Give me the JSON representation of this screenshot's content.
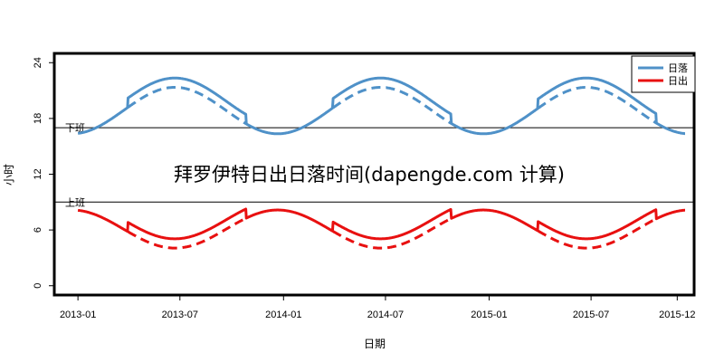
{
  "chart_data": {
    "type": "line",
    "title": "拜罗伊特日出日落时间(dapengde.com 计算)",
    "xlabel": "日期",
    "ylabel": "小时",
    "ylim": [
      -1,
      25
    ],
    "yticks": [
      0,
      6,
      12,
      18,
      24
    ],
    "xlim": [
      "2012-11-20",
      "2015-12-31"
    ],
    "xticks": [
      {
        "date": "2013-01-01",
        "label": "2013-01"
      },
      {
        "date": "2013-07-01",
        "label": "2013-07"
      },
      {
        "date": "2014-01-01",
        "label": "2014-01"
      },
      {
        "date": "2014-07-01",
        "label": "2014-07"
      },
      {
        "date": "2015-01-01",
        "label": "2015-01"
      },
      {
        "date": "2015-07-01",
        "label": "2015-07"
      },
      {
        "date": "2015-12-01",
        "label": "2015-12"
      }
    ],
    "x_range": [
      "2013-01-01",
      "2015-12-15"
    ],
    "dst": [
      {
        "start": "2013-03-31",
        "end": "2013-10-27"
      },
      {
        "start": "2014-03-30",
        "end": "2014-10-26"
      },
      {
        "start": "2015-03-29",
        "end": "2015-10-25"
      }
    ],
    "series": [
      {
        "name": "日落",
        "color": "#4f91c8",
        "solid_line": "clock time",
        "dashed_line": "standard time",
        "mean": 18.85,
        "amplitude": 2.5,
        "phase_date": "2013-06-22"
      },
      {
        "name": "日出",
        "color": "#e81010",
        "solid_line": "clock time",
        "dashed_line": "standard time",
        "mean": 6.1,
        "amplitude": -2.05,
        "phase_date": "2013-06-22"
      }
    ],
    "reference_lines": [
      {
        "label": "下班",
        "value": 17
      },
      {
        "label": "上班",
        "value": 9
      }
    ],
    "grid": false,
    "legend_position": "top-right"
  }
}
